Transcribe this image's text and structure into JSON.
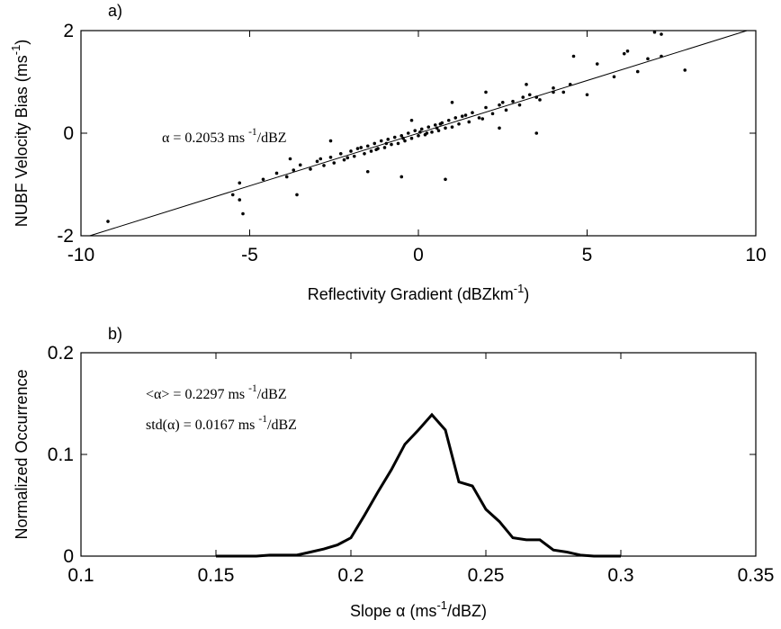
{
  "chart_data": [
    {
      "type": "scatter",
      "panel_label": "a)",
      "xlabel": [
        "Reflectivity Gradient (dBZkm",
        "-1",
        ")"
      ],
      "ylabel": [
        "NUBF Velocity Bias (ms",
        "-1",
        ")"
      ],
      "annotations": [
        [
          "α = 0.2053 ms ",
          "-1",
          "/dBZ"
        ]
      ],
      "xlim": [
        -10,
        10
      ],
      "ylim": [
        -2,
        2
      ],
      "xticks": [
        -10,
        -5,
        0,
        5,
        10
      ],
      "yticks": [
        -2,
        0,
        2
      ],
      "series": [
        {
          "color": "#000000",
          "x": [
            -9.2,
            -5.5,
            -5.3,
            -5.2,
            -5.3,
            7.0,
            7.2,
            7.9,
            7.2,
            6.2,
            6.1,
            5.3,
            6.5,
            3.5,
            4.0,
            -3.6,
            -4.6,
            -3.8,
            4.6,
            3.5,
            2.4,
            0.8,
            -0.5,
            -1.5,
            -2.6,
            -0.2,
            1.0,
            2.0,
            3.2,
            5.0,
            4.5,
            5.8,
            6.8,
            -4.2,
            -3.9,
            -3.5,
            -3.2,
            -3.0,
            -2.8,
            -2.6,
            -2.5,
            -2.3,
            -2.2,
            -2.0,
            -1.9,
            -1.8,
            -1.6,
            -1.5,
            -1.4,
            -1.3,
            -1.2,
            -1.1,
            -1.0,
            -0.9,
            -0.8,
            -0.7,
            -0.6,
            -0.5,
            -0.4,
            -0.3,
            -0.2,
            -0.1,
            0,
            0.1,
            0.2,
            0.3,
            0.4,
            0.5,
            0.6,
            0.7,
            0.8,
            0.9,
            1.0,
            1.1,
            1.2,
            1.3,
            1.5,
            1.6,
            1.8,
            2.0,
            2.2,
            2.4,
            2.6,
            2.8,
            3.0,
            3.3,
            3.6,
            4.0,
            4.3,
            -3.7,
            -2.9,
            -2.1,
            -1.7,
            -0.95,
            -0.45,
            0.25,
            0.65,
            1.4,
            1.9,
            2.5,
            3.1,
            -1.25,
            0.05,
            0.55
          ],
          "y": [
            -1.72,
            -1.2,
            -1.3,
            -1.57,
            -0.97,
            1.97,
            1.93,
            1.23,
            1.5,
            1.6,
            1.55,
            1.35,
            1.2,
            0.7,
            0.8,
            -1.2,
            -0.9,
            -0.5,
            1.5,
            0.0,
            0.1,
            -0.9,
            -0.85,
            -0.75,
            -0.15,
            0.25,
            0.6,
            0.8,
            0.95,
            0.75,
            0.95,
            1.1,
            1.45,
            -0.78,
            -0.85,
            -0.62,
            -0.7,
            -0.55,
            -0.63,
            -0.47,
            -0.58,
            -0.4,
            -0.52,
            -0.35,
            -0.45,
            -0.3,
            -0.4,
            -0.25,
            -0.35,
            -0.2,
            -0.3,
            -0.15,
            -0.28,
            -0.12,
            -0.22,
            -0.08,
            -0.2,
            -0.05,
            -0.15,
            0.0,
            -0.1,
            0.05,
            -0.05,
            0.08,
            -0.03,
            0.12,
            0.02,
            0.16,
            0.05,
            0.2,
            0.1,
            0.25,
            0.12,
            0.3,
            0.18,
            0.33,
            0.22,
            0.4,
            0.3,
            0.5,
            0.38,
            0.55,
            0.45,
            0.62,
            0.55,
            0.75,
            0.65,
            0.88,
            0.8,
            -0.72,
            -0.5,
            -0.48,
            -0.28,
            -0.2,
            -0.1,
            0.0,
            0.18,
            0.35,
            0.28,
            0.6,
            0.7,
            -0.32,
            0.02,
            0.1
          ]
        }
      ],
      "fit_line": {
        "x": [
          -9.74,
          9.74
        ],
        "y": [
          -2,
          2
        ]
      }
    },
    {
      "type": "line",
      "panel_label": "b)",
      "xlabel": [
        "Slope α (ms",
        "-1",
        "/dBZ)"
      ],
      "ylabel": [
        "Normalized Occurrence"
      ],
      "annotations": [
        [
          "<α> = 0.2297 ms ",
          "-1",
          "/dBZ"
        ],
        [
          "std(α) = 0.0167 ms ",
          "-1",
          "/dBZ"
        ]
      ],
      "xlim": [
        0.1,
        0.35
      ],
      "ylim": [
        0,
        0.2
      ],
      "xticks": [
        0.1,
        0.15,
        0.2,
        0.25,
        0.3,
        0.35
      ],
      "yticks": [
        0,
        0.1,
        0.2
      ],
      "series": [
        {
          "color": "#000000",
          "x": [
            0.15,
            0.155,
            0.16,
            0.165,
            0.17,
            0.175,
            0.18,
            0.185,
            0.19,
            0.195,
            0.2,
            0.205,
            0.21,
            0.215,
            0.22,
            0.225,
            0.23,
            0.235,
            0.24,
            0.245,
            0.25,
            0.255,
            0.26,
            0.265,
            0.27,
            0.275,
            0.28,
            0.285,
            0.29,
            0.295,
            0.3
          ],
          "y": [
            0,
            0,
            0,
            0,
            0.001,
            0.001,
            0.001,
            0.004,
            0.007,
            0.011,
            0.018,
            0.04,
            0.063,
            0.085,
            0.11,
            0.124,
            0.139,
            0.124,
            0.073,
            0.069,
            0.046,
            0.034,
            0.018,
            0.016,
            0.016,
            0.006,
            0.004,
            0.001,
            0,
            0,
            0
          ]
        }
      ]
    }
  ]
}
